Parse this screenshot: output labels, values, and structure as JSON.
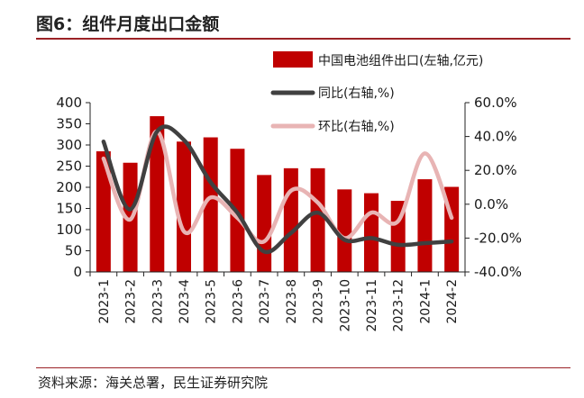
{
  "figure": {
    "title": "图6：组件月度出口金额",
    "source": "资料来源：海关总署，民生证券研究院"
  },
  "colors": {
    "bar": "#c00000",
    "yoy_line": "#404040",
    "mom_line": "#e8b4b4",
    "rule": "#9b2226"
  },
  "chart_data": {
    "type": "bar",
    "title": "组件月度出口金额",
    "categories": [
      "2023-1",
      "2023-2",
      "2023-3",
      "2023-4",
      "2023-5",
      "2023-6",
      "2023-7",
      "2023-8",
      "2023-9",
      "2023-10",
      "2023-11",
      "2023-12",
      "2024-1",
      "2024-2"
    ],
    "ylim_left": [
      0,
      400
    ],
    "left_ticks": [
      "0",
      "50",
      "100",
      "150",
      "200",
      "250",
      "300",
      "350",
      "400"
    ],
    "ylim_right": [
      -40,
      60
    ],
    "right_ticks": [
      "-40.0%",
      "-20.0%",
      "0.0%",
      "20.0%",
      "40.0%",
      "60.0%"
    ],
    "legend_position": "top-right",
    "series": [
      {
        "name": "中国电池组件出口(左轴,亿元)",
        "kind": "bar",
        "axis": "left",
        "values": [
          285,
          258,
          368,
          308,
          318,
          291,
          229,
          245,
          245,
          195,
          186,
          168,
          219,
          201
        ]
      },
      {
        "name": "同比(右轴,%)",
        "kind": "line",
        "axis": "right",
        "values": [
          37,
          -3,
          43,
          38,
          13,
          -5,
          -28,
          -17,
          -5,
          -21,
          -20,
          -24,
          -23,
          -22
        ]
      },
      {
        "name": "环比(右轴,%)",
        "kind": "line",
        "axis": "right",
        "values": [
          27,
          -9,
          43,
          -16,
          4,
          -8,
          -22,
          8,
          1,
          -20,
          -5,
          -10,
          30,
          -8
        ]
      }
    ]
  }
}
